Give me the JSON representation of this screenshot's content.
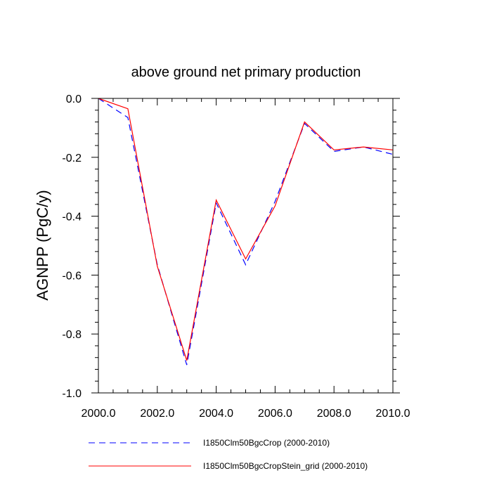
{
  "chart_data": {
    "type": "line",
    "title": "above ground net primary production",
    "xlabel": "",
    "ylabel": "AGNPP  (PgC/y)",
    "xlim": [
      2000.0,
      2010.0
    ],
    "ylim": [
      -1.0,
      0.0
    ],
    "x_ticks": [
      2000,
      2002,
      2004,
      2006,
      2008,
      2010
    ],
    "x_tick_labels": [
      "2000.0",
      "2002.0",
      "2004.0",
      "2006.0",
      "2008.0",
      "2010.0"
    ],
    "y_ticks": [
      0.0,
      -0.2,
      -0.4,
      -0.6,
      -0.8,
      -1.0
    ],
    "y_tick_labels": [
      "0.0",
      "-0.2",
      "-0.4",
      "-0.6",
      "-0.8",
      "-1.0"
    ],
    "grid": false,
    "legend_position": "bottom",
    "x": [
      2000,
      2001,
      2002,
      2003,
      2004,
      2005,
      2006,
      2007,
      2008,
      2009,
      2010
    ],
    "series": [
      {
        "name": "I1850Clm50BgcCrop (2000-2010)",
        "color": "#0000ff",
        "dash": "dashed",
        "values": [
          0.0,
          -0.065,
          -0.565,
          -0.905,
          -0.355,
          -0.565,
          -0.35,
          -0.085,
          -0.18,
          -0.165,
          -0.19
        ]
      },
      {
        "name": "I1850Clm50BgcCropStein_grid (2000-2010)",
        "color": "#ff0000",
        "dash": "solid",
        "values": [
          0.0,
          -0.035,
          -0.57,
          -0.89,
          -0.345,
          -0.545,
          -0.365,
          -0.08,
          -0.175,
          -0.165,
          -0.175
        ]
      }
    ]
  }
}
